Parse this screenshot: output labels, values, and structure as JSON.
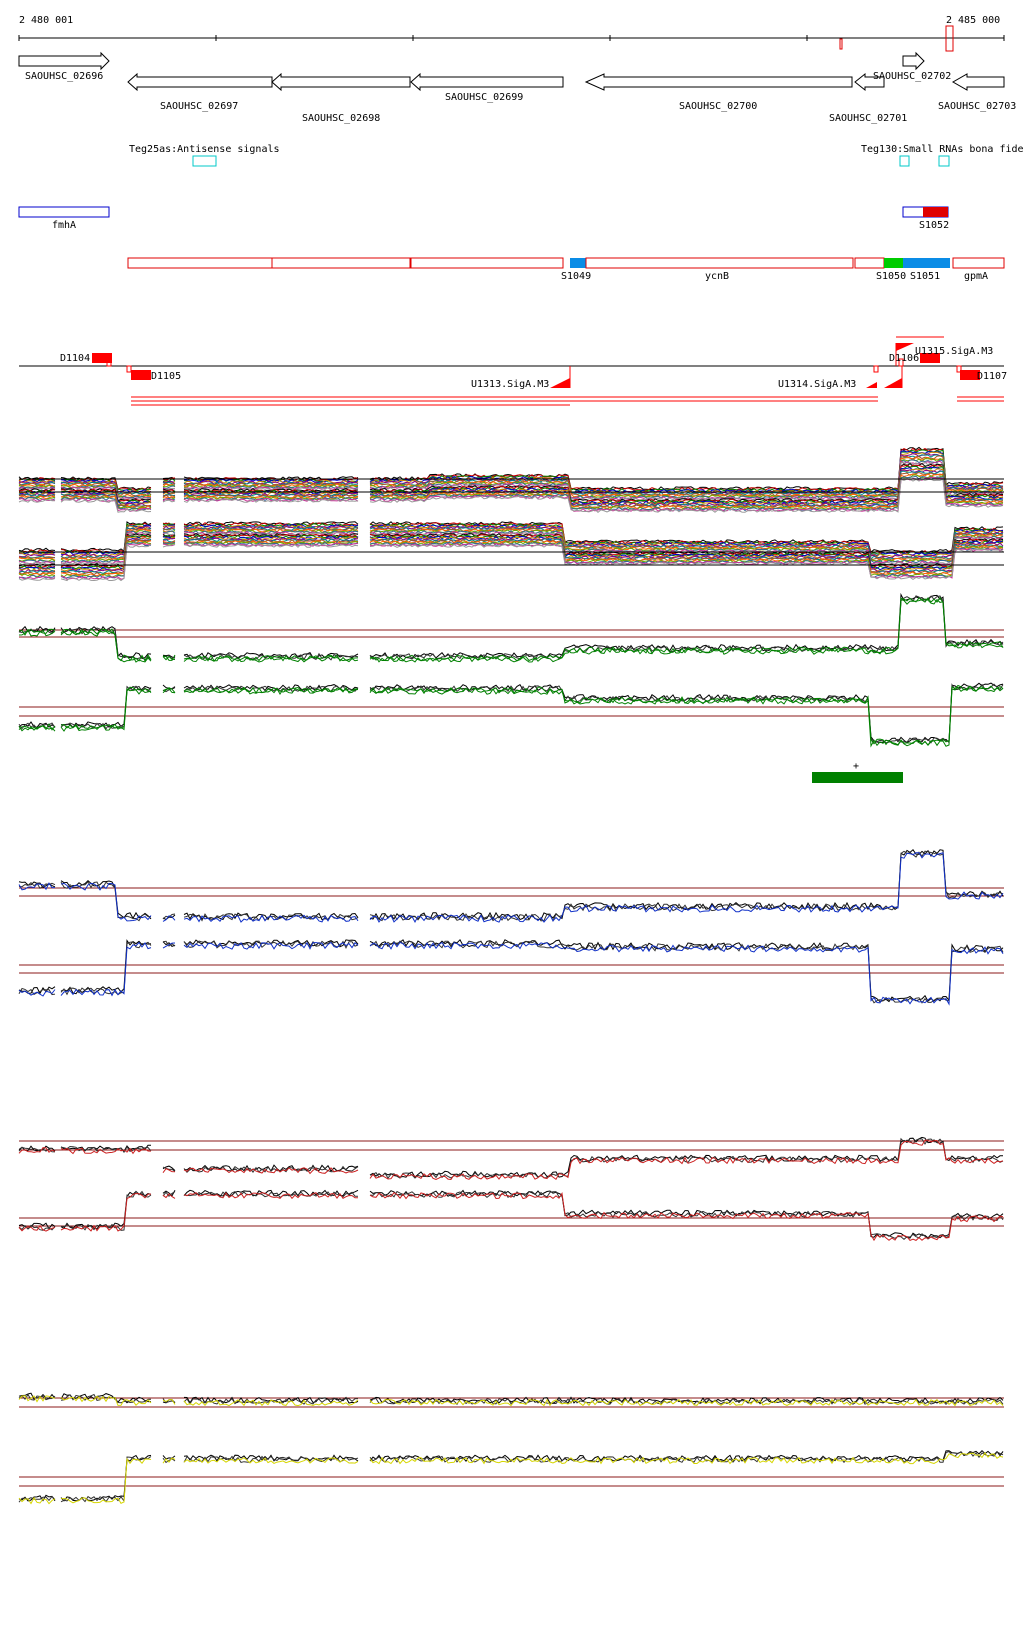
{
  "ruler": {
    "start_label": "2 480 001",
    "end_label": "2 485 000"
  },
  "genes": [
    {
      "id": "SAOUHSC_02696",
      "label": "SAOUHSC_02696",
      "strand": "+"
    },
    {
      "id": "SAOUHSC_02697",
      "label": "SAOUHSC_02697",
      "strand": "-"
    },
    {
      "id": "SAOUHSC_02698",
      "label": "SAOUHSC_02698",
      "strand": "-"
    },
    {
      "id": "SAOUHSC_02699",
      "label": "SAOUHSC_02699",
      "strand": "-"
    },
    {
      "id": "SAOUHSC_02700",
      "label": "SAOUHSC_02700",
      "strand": "-"
    },
    {
      "id": "SAOUHSC_02701",
      "label": "SAOUHSC_02701",
      "strand": "-"
    },
    {
      "id": "SAOUHSC_02702",
      "label": "SAOUHSC_02702",
      "strand": "+"
    },
    {
      "id": "SAOUHSC_02703",
      "label": "SAOUHSC_02703",
      "strand": "-"
    }
  ],
  "small_rnas": [
    {
      "label": "Teg25as:Antisense signals"
    },
    {
      "label": "Teg130:Small RNAs bona fide"
    }
  ],
  "plus_track": [
    {
      "label": "fmhA"
    },
    {
      "label": "S1052"
    }
  ],
  "minus_track": [
    {
      "label": "S1049"
    },
    {
      "label": "ycnB"
    },
    {
      "label": "S1050"
    },
    {
      "label": "S1051"
    },
    {
      "label": "gpmA"
    }
  ],
  "segments": [
    {
      "label": "D1104"
    },
    {
      "label": "D1105"
    },
    {
      "label": "U1313.SigA.M3"
    },
    {
      "label": "U1314.SigA.M3"
    },
    {
      "label": "U1315.SigA.M3"
    },
    {
      "label": "D1106"
    },
    {
      "label": "D1107"
    }
  ],
  "condition_marker": {
    "label": "+"
  },
  "colors": {
    "gene_outline": "#000000",
    "srna": "#00c8c8",
    "plus": "#0000cc",
    "minus": "#e00000",
    "sigma_blue": "#0a8ce6",
    "sigma_green": "#00cc00",
    "segment_red": "#ff0000",
    "threshold": "#8b1a1a",
    "profile_green": "#008000",
    "profile_blue": "#1030c8",
    "profile_red": "#cc2020",
    "profile_yellow": "#d6d600",
    "condition_bar": "#008000"
  }
}
